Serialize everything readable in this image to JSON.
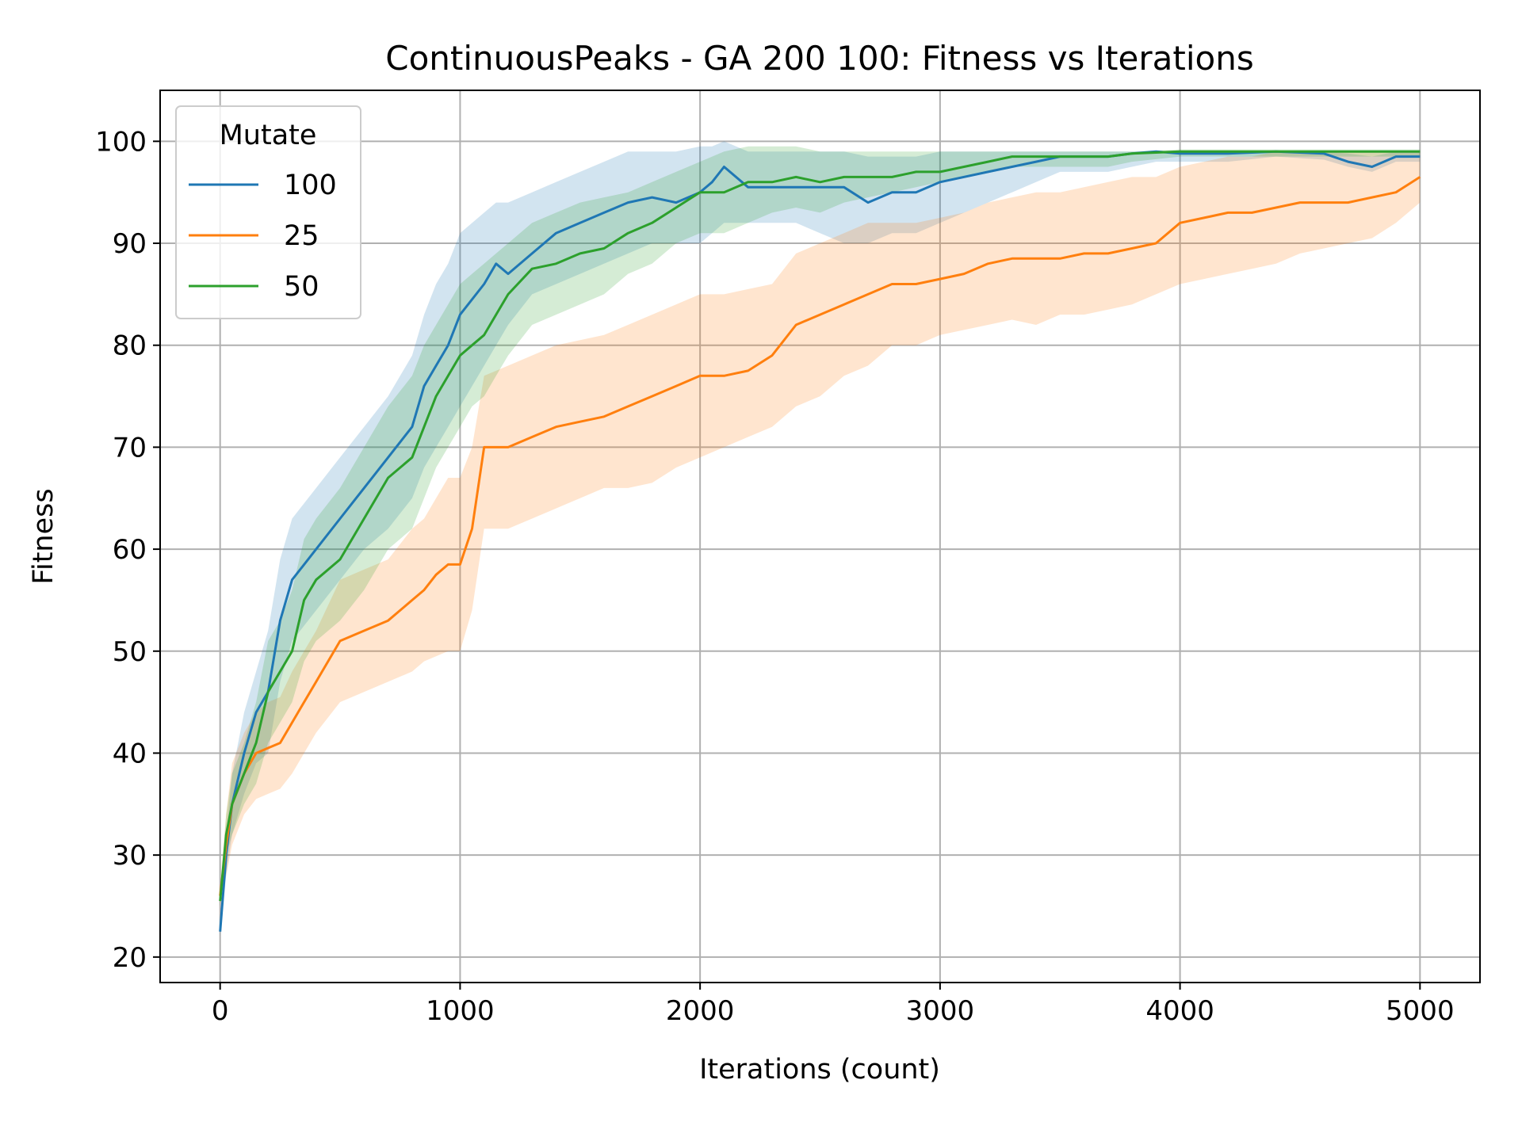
{
  "chart_data": {
    "type": "line",
    "title": "ContinuousPeaks - GA 200 100: Fitness vs Iterations",
    "xlabel": "Iterations (count)",
    "ylabel": "Fitness",
    "xlim": [
      -250,
      5250
    ],
    "ylim": [
      17.5,
      105
    ],
    "xticks": [
      0,
      1000,
      2000,
      3000,
      4000,
      5000
    ],
    "xtick_labels": [
      "0",
      "1000",
      "2000",
      "3000",
      "4000",
      "5000"
    ],
    "yticks": [
      20,
      30,
      40,
      50,
      60,
      70,
      80,
      90,
      100
    ],
    "ytick_labels": [
      "20",
      "30",
      "40",
      "50",
      "60",
      "70",
      "80",
      "90",
      "100"
    ],
    "grid": true,
    "legend": {
      "title": "Mutate",
      "placement": "upper-left"
    },
    "series": [
      {
        "name": "100",
        "color": "#1f77b4",
        "x": [
          0,
          25,
          50,
          100,
          150,
          200,
          250,
          300,
          400,
          500,
          600,
          700,
          800,
          850,
          900,
          950,
          1000,
          1100,
          1150,
          1200,
          1300,
          1400,
          1500,
          1600,
          1700,
          1800,
          1900,
          2000,
          2050,
          2100,
          2200,
          2300,
          2400,
          2500,
          2600,
          2700,
          2800,
          2900,
          3000,
          3200,
          3300,
          3400,
          3500,
          3600,
          3700,
          3800,
          3900,
          4000,
          4200,
          4400,
          4600,
          4700,
          4800,
          4900,
          5000
        ],
        "y": [
          22.5,
          30,
          35,
          40,
          44,
          46,
          53,
          57,
          60,
          63,
          66,
          69,
          72,
          76,
          78,
          80,
          83,
          86,
          88,
          87,
          89,
          91,
          92,
          93,
          94,
          94.5,
          94,
          95,
          96,
          97.5,
          95.5,
          95.5,
          95.5,
          95.5,
          95.5,
          94,
          95,
          95,
          96,
          97,
          97.5,
          98,
          98.5,
          98.5,
          98.5,
          98.8,
          99,
          98.8,
          98.8,
          99,
          98.8,
          98,
          97.5,
          98.5,
          98.5
        ],
        "lower": [
          22,
          28,
          32,
          36,
          39,
          40,
          47,
          51,
          54,
          57,
          60,
          62,
          65,
          68,
          70,
          72,
          74,
          78,
          80,
          82,
          85,
          86,
          87,
          88,
          89,
          90,
          90,
          90,
          91,
          92,
          92,
          92,
          92,
          91,
          90,
          90,
          91,
          91,
          92,
          94,
          95,
          96,
          97,
          97,
          97,
          97.5,
          98,
          98,
          98,
          98.5,
          98.2,
          97.5,
          97,
          98,
          98
        ],
        "upper": [
          23,
          32,
          38,
          44,
          48,
          52,
          59,
          63,
          66,
          69,
          72,
          75,
          79,
          83,
          86,
          88,
          91,
          93,
          94,
          94,
          95,
          96,
          97,
          98,
          99,
          99,
          99,
          99.5,
          99.5,
          100,
          99,
          99,
          99,
          99,
          99,
          98.5,
          98.5,
          98.5,
          99,
          99,
          99,
          99,
          99,
          99,
          99,
          99,
          99,
          99,
          99,
          99,
          99,
          98.8,
          98.5,
          99,
          99
        ]
      },
      {
        "name": "25",
        "color": "#ff7f0e",
        "x": [
          0,
          25,
          50,
          100,
          150,
          200,
          250,
          300,
          350,
          400,
          500,
          600,
          700,
          800,
          850,
          900,
          950,
          1000,
          1050,
          1100,
          1200,
          1300,
          1400,
          1500,
          1600,
          1700,
          1800,
          1900,
          2000,
          2100,
          2200,
          2300,
          2400,
          2500,
          2600,
          2700,
          2800,
          2900,
          3000,
          3100,
          3200,
          3300,
          3400,
          3500,
          3600,
          3700,
          3800,
          3900,
          4000,
          4100,
          4200,
          4300,
          4400,
          4500,
          4600,
          4700,
          4800,
          4900,
          5000
        ],
        "y": [
          26,
          31,
          35,
          38,
          40,
          40.5,
          41,
          43,
          45,
          47,
          51,
          52,
          53,
          55,
          56,
          57.5,
          58.5,
          58.5,
          62,
          70,
          70,
          71,
          72,
          72.5,
          73,
          74,
          75,
          76,
          77,
          77,
          77.5,
          79,
          82,
          83,
          84,
          85,
          86,
          86,
          86.5,
          87,
          88,
          88.5,
          88.5,
          88.5,
          89,
          89,
          89.5,
          90,
          92,
          92.5,
          93,
          93,
          93.5,
          94,
          94,
          94,
          94.5,
          95,
          96.5
        ],
        "lower": [
          25,
          28,
          31,
          34,
          35.5,
          36,
          36.5,
          38,
          40,
          42,
          45,
          46,
          47,
          48,
          49,
          49.5,
          50,
          50,
          54,
          62,
          62,
          63,
          64,
          65,
          66,
          66,
          66.5,
          68,
          69,
          70,
          71,
          72,
          74,
          75,
          77,
          78,
          80,
          80,
          81,
          81.5,
          82,
          82.5,
          82,
          83,
          83,
          83.5,
          84,
          85,
          86,
          86.5,
          87,
          87.5,
          88,
          89,
          89.5,
          90,
          90.5,
          92,
          94
        ],
        "upper": [
          27,
          34,
          39,
          42,
          44,
          45,
          45.5,
          48,
          50,
          52,
          57,
          58,
          59,
          62,
          63,
          65,
          67,
          67,
          70,
          77,
          78,
          79,
          80,
          80.5,
          81,
          82,
          83,
          84,
          85,
          85,
          85.5,
          86,
          89,
          90,
          91,
          92,
          92,
          92,
          92.5,
          93,
          94,
          94.5,
          95,
          95,
          95.5,
          96,
          96.5,
          96.5,
          97.5,
          98,
          98.5,
          98.5,
          99,
          99,
          99,
          99,
          99,
          99,
          99
        ]
      },
      {
        "name": "50",
        "color": "#2ca02c",
        "x": [
          0,
          25,
          50,
          100,
          150,
          200,
          250,
          300,
          350,
          400,
          500,
          600,
          700,
          800,
          850,
          900,
          950,
          1000,
          1050,
          1100,
          1150,
          1200,
          1300,
          1400,
          1500,
          1600,
          1700,
          1800,
          1900,
          2000,
          2100,
          2200,
          2300,
          2400,
          2500,
          2600,
          2700,
          2800,
          2900,
          3000,
          3100,
          3200,
          3300,
          3400,
          3500,
          3600,
          3700,
          3800,
          4000,
          4500,
          5000
        ],
        "y": [
          25.5,
          32,
          35,
          38,
          41,
          46,
          48,
          50,
          55,
          57,
          59,
          63,
          67,
          69,
          72,
          75,
          77,
          79,
          80,
          81,
          83,
          85,
          87.5,
          88,
          89,
          89.5,
          91,
          92,
          93.5,
          95,
          95,
          96,
          96,
          96.5,
          96,
          96.5,
          96.5,
          96.5,
          97,
          97,
          97.5,
          98,
          98.5,
          98.5,
          98.5,
          98.5,
          98.5,
          98.8,
          99,
          99,
          99
        ],
        "lower": [
          25,
          30,
          32,
          35,
          37,
          41,
          43,
          45,
          49,
          51,
          53,
          56,
          60,
          62,
          65,
          68,
          70,
          72,
          74,
          75,
          77,
          79,
          82,
          83,
          84,
          85,
          87,
          88,
          90,
          91,
          91,
          92,
          93,
          93.5,
          93,
          94,
          94.5,
          95,
          95.5,
          96,
          96.5,
          97,
          97.5,
          97.5,
          97.5,
          97.5,
          97.5,
          98,
          98.5,
          98.5,
          98.5
        ],
        "upper": [
          26,
          34,
          38,
          41,
          45,
          51,
          53,
          56,
          61,
          63,
          66,
          70,
          74,
          77,
          80,
          82,
          84,
          86,
          87,
          88,
          89,
          90,
          92,
          93,
          94,
          94.5,
          95,
          96,
          97,
          98,
          99,
          99.5,
          99.5,
          99.5,
          99,
          99,
          99,
          99,
          99,
          99,
          99,
          99,
          99,
          99,
          99,
          99,
          99,
          99,
          99.2,
          99.2,
          99.2
        ]
      }
    ]
  }
}
